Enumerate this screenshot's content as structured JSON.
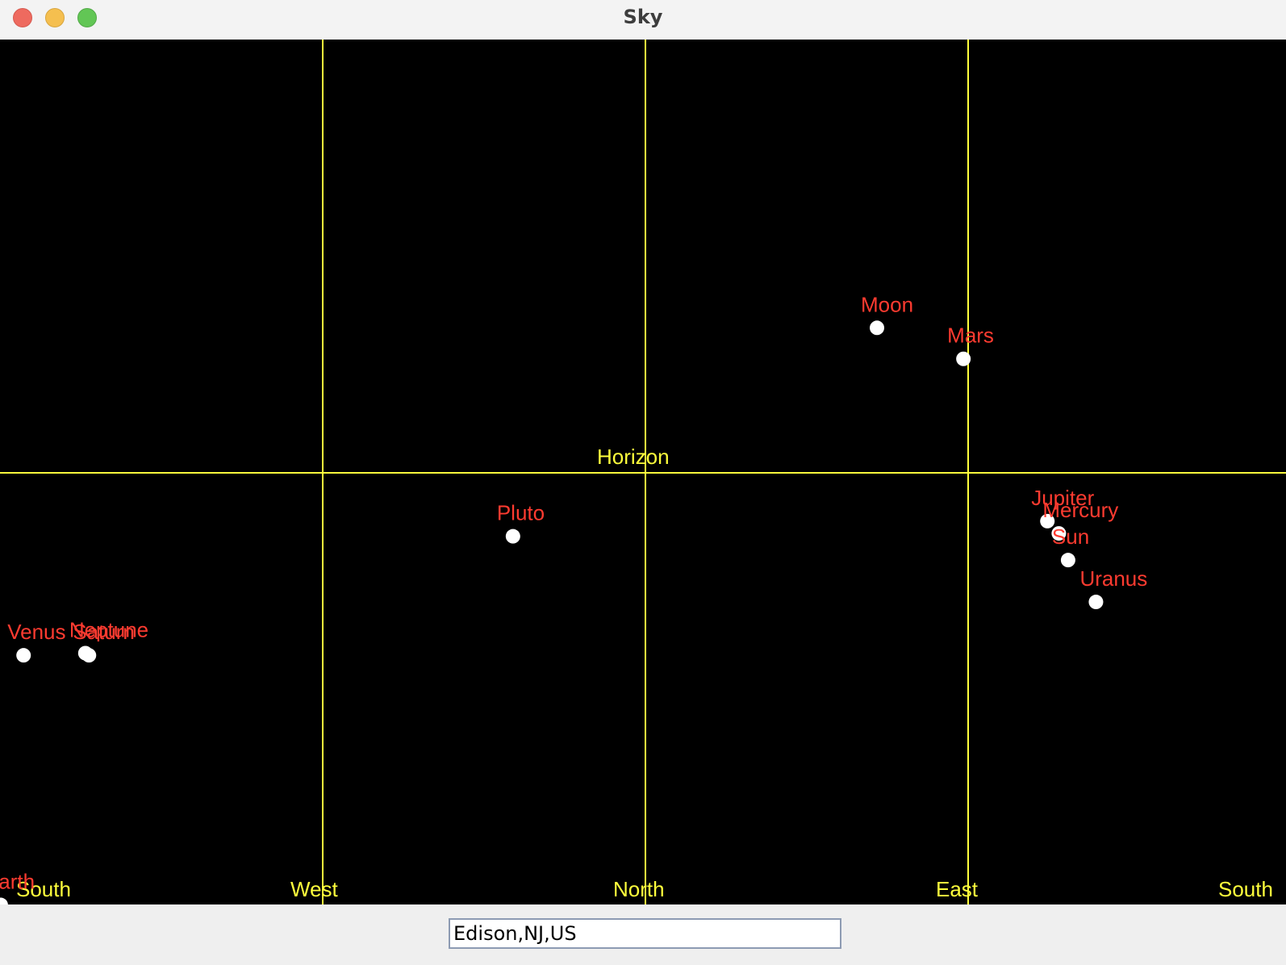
{
  "window": {
    "title": "Sky",
    "controls": [
      "close",
      "minimize",
      "zoom"
    ]
  },
  "sky": {
    "background": "#000000",
    "grid_color": "#ffff3c",
    "label_color": "#ff3b30",
    "body_color": "#ffffff",
    "horizon_label": "Horizon",
    "directions": [
      "South",
      "West",
      "North",
      "East",
      "South"
    ],
    "bodies": [
      {
        "name": "Moon",
        "azimuth": 65.5,
        "altitude": 20.1
      },
      {
        "name": "Mars",
        "azimuth": 89.7,
        "altitude": 15.8
      },
      {
        "name": "Pluto",
        "azimuth": -36.4,
        "altitude": -8.8
      },
      {
        "name": "Jupiter",
        "azimuth": 113.2,
        "altitude": -6.7
      },
      {
        "name": "Mercury",
        "azimuth": 116.4,
        "altitude": -8.4
      },
      {
        "name": "Sun",
        "azimuth": 119.0,
        "altitude": -12.1
      },
      {
        "name": "Uranus",
        "azimuth": 126.8,
        "altitude": -17.9
      },
      {
        "name": "Venus",
        "azimuth": -173.4,
        "altitude": -25.3
      },
      {
        "name": "Neptune",
        "azimuth": -156.1,
        "altitude": -25.0
      },
      {
        "name": "Saturn",
        "azimuth": -155.1,
        "altitude": -25.3
      },
      {
        "name": "Earth",
        "azimuth": -179.8,
        "altitude": -59.9
      }
    ]
  },
  "location": {
    "value": "Edison,NJ,US"
  }
}
